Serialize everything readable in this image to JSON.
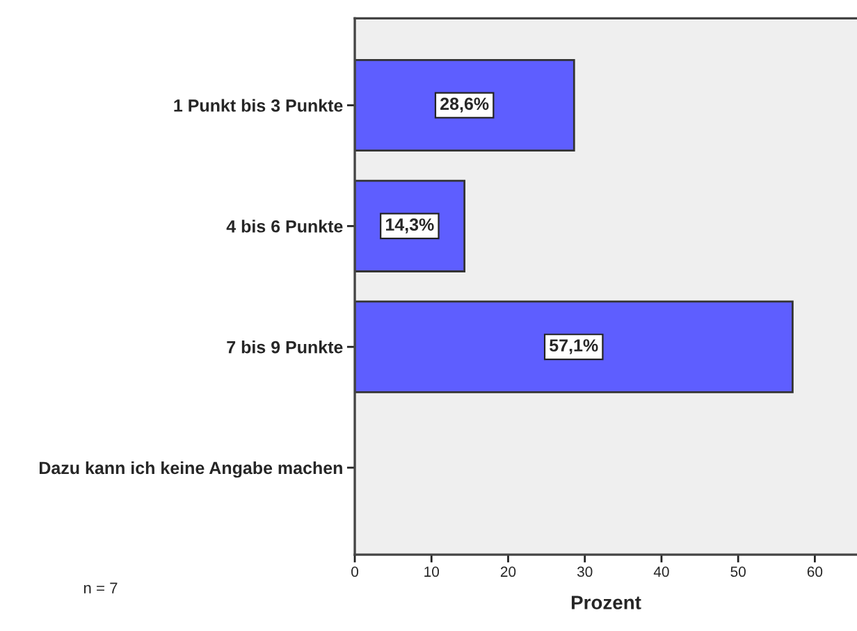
{
  "chart_data": {
    "type": "bar",
    "orientation": "horizontal",
    "categories": [
      "1 Punkt bis 3 Punkte",
      "4 bis 6 Punkte",
      "7 bis 9 Punkte",
      "Dazu kann ich keine Angabe machen"
    ],
    "values": [
      28.6,
      14.3,
      57.1,
      null
    ],
    "value_labels": [
      "28,6%",
      "14,3%",
      "57,1%",
      null
    ],
    "color": "#5e5eff",
    "xlabel": "Prozent",
    "xlim": [
      0,
      65.5
    ],
    "xticks": [
      0,
      10,
      20,
      30,
      40,
      50,
      60
    ],
    "annotations": [
      "n = 7"
    ],
    "grid": false,
    "legend": false
  }
}
